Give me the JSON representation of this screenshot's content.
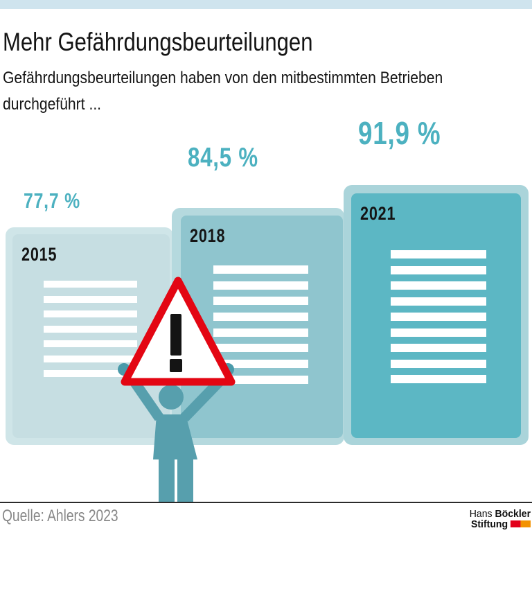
{
  "page": {
    "topbar_color": "#cfe4ee",
    "background_color": "#ffffff"
  },
  "header": {
    "title": "Mehr Gefährdungsbeurteilungen",
    "subtitle_line1": "Gefährdungsbeurteilungen haben von den mitbestimmten Betrieben",
    "subtitle_line2": "durchgeführt ..."
  },
  "chart_data": {
    "type": "bar",
    "title": "Mehr Gefährdungsbeurteilungen",
    "subtitle": "Gefährdungsbeurteilungen haben von den mitbestimmten Betrieben durchgeführt ...",
    "categories": [
      "2015",
      "2018",
      "2021"
    ],
    "values": [
      77.7,
      84.5,
      91.9
    ],
    "value_labels": [
      "77,7 %",
      "84,5 %",
      "91,9 %"
    ],
    "unit": "%",
    "ylim": [
      0,
      100
    ],
    "grid": false,
    "legend": false,
    "style": "stylized document cards rising like bars, labeled above each card"
  },
  "cards": [
    {
      "year": "2015",
      "value_label": "77,7 %",
      "placeholder_lines": 7,
      "fill_color": "#c6dee2",
      "frame_color": "#cfe5e8"
    },
    {
      "year": "2018",
      "value_label": "84,5 %",
      "placeholder_lines": 8,
      "fill_color": "#8fc5ce",
      "frame_color": "#b5d9de"
    },
    {
      "year": "2021",
      "value_label": "91,9 %",
      "placeholder_lines": 9,
      "fill_color": "#5cb7c4",
      "frame_color": "#aad4da"
    }
  ],
  "illustration": {
    "figure_color": "#579fad",
    "hand_color": "#4a9aaa",
    "warning_sign": {
      "border_color": "#e30613",
      "fill_color": "#ffffff",
      "glyph": "!",
      "glyph_color": "#141414"
    }
  },
  "colors": {
    "accent_teal": "#4cb1c0",
    "text_black": "#141414",
    "source_gray": "#878787",
    "rule_black": "#2b2b2b"
  },
  "footer": {
    "source": "Quelle: Ahlers 2023",
    "logo": {
      "line1_light": "Hans",
      "line1_bold": "Böckler",
      "line2_bold": "Stiftung",
      "mark_colors": [
        "#e2001a",
        "#f39200"
      ]
    }
  }
}
